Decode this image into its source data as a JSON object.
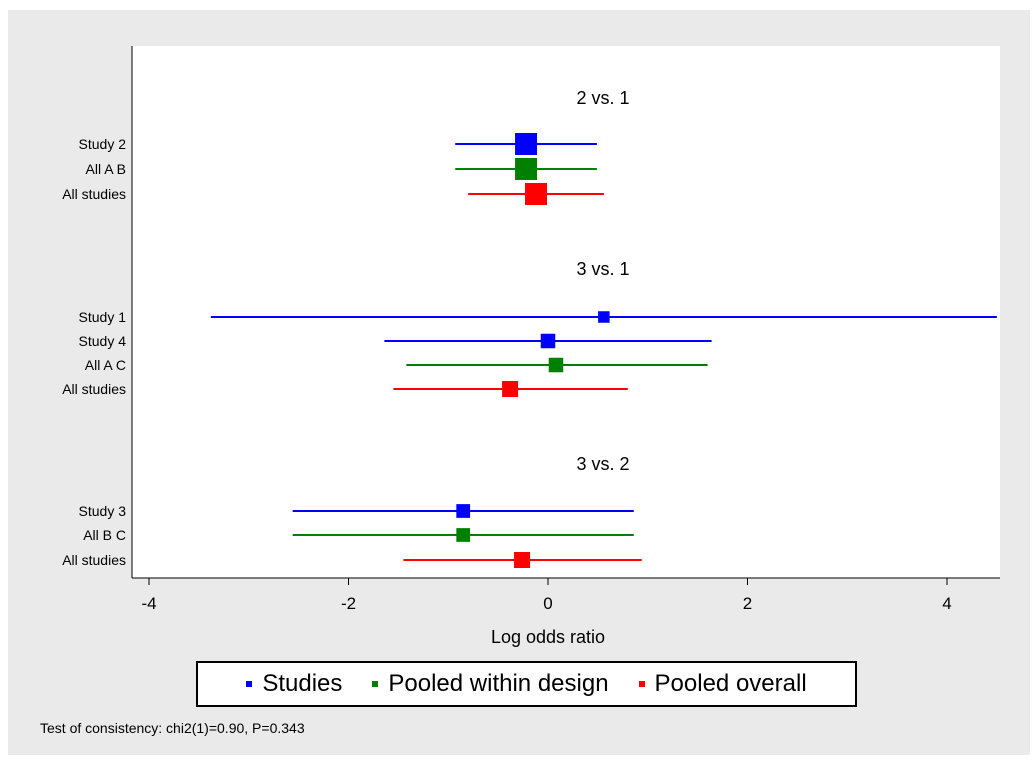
{
  "chart_data": {
    "type": "forest",
    "xlabel": "Log odds ratio",
    "xlim": [
      -4.2,
      4.5
    ],
    "xticks": [
      -4,
      -2,
      0,
      2,
      4
    ],
    "xtick_labels": [
      "-4",
      "-2",
      "0",
      "2",
      "4"
    ],
    "groups": [
      {
        "title": "2 vs. 1",
        "rows": [
          {
            "label": "Study 2",
            "est": -0.22,
            "lo": -0.93,
            "hi": 0.49,
            "type": "study",
            "weight": 1.0
          },
          {
            "label": "All A B",
            "est": -0.22,
            "lo": -0.93,
            "hi": 0.49,
            "type": "design",
            "weight": 1.0
          },
          {
            "label": "All studies",
            "est": -0.12,
            "lo": -0.8,
            "hi": 0.56,
            "type": "overall",
            "weight": 1.0
          }
        ]
      },
      {
        "title": "3 vs. 1",
        "rows": [
          {
            "label": "Study 1",
            "est": 0.56,
            "lo": -3.38,
            "hi": 4.5,
            "type": "study",
            "weight": 0.3
          },
          {
            "label": "Study 4",
            "est": 0.0,
            "lo": -1.64,
            "hi": 1.64,
            "type": "study",
            "weight": 0.5
          },
          {
            "label": "All A C",
            "est": 0.08,
            "lo": -1.42,
            "hi": 1.6,
            "type": "design",
            "weight": 0.5
          },
          {
            "label": "All studies",
            "est": -0.38,
            "lo": -1.55,
            "hi": 0.8,
            "type": "overall",
            "weight": 0.6
          }
        ]
      },
      {
        "title": "3 vs. 2",
        "rows": [
          {
            "label": "Study 3",
            "est": -0.85,
            "lo": -2.56,
            "hi": 0.86,
            "type": "study",
            "weight": 0.45
          },
          {
            "label": "All B C",
            "est": -0.85,
            "lo": -2.56,
            "hi": 0.86,
            "type": "design",
            "weight": 0.45
          },
          {
            "label": "All studies",
            "est": -0.26,
            "lo": -1.45,
            "hi": 0.94,
            "type": "overall",
            "weight": 0.6
          }
        ]
      }
    ],
    "legend": [
      {
        "key": "study",
        "label": "Studies",
        "color": "#0000ff"
      },
      {
        "key": "design",
        "label": "Pooled within design",
        "color": "#008000"
      },
      {
        "key": "overall",
        "label": "Pooled overall",
        "color": "#ff0000"
      }
    ],
    "legend_position": "bottom",
    "grid": false
  },
  "footnote": "Test of consistency: chi2(1)=0.90, P=0.343"
}
